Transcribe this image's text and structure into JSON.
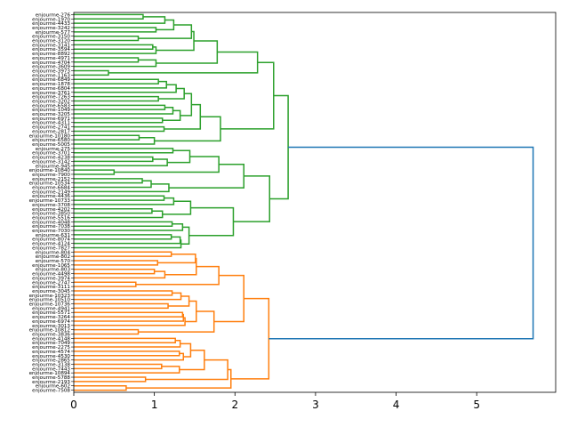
{
  "chart_data": {
    "type": "dendrogram",
    "title": "",
    "xlabel": "",
    "ylabel": "",
    "orientation": "right",
    "xlim": [
      0,
      5.98
    ],
    "xticks": [
      "0",
      "1",
      "2",
      "3",
      "4",
      "5"
    ],
    "colors": {
      "cluster_1": "#2ca02c",
      "cluster_2": "#ff7f0e",
      "root": "#1f77b4"
    },
    "leaves": [
      "enjourme-276",
      "enjourme-1970",
      "enjourme-4433",
      "enjourme-3242",
      "enjourme-577",
      "enjourme-3150",
      "enjourme-3120",
      "enjourme-3141",
      "enjourme-3594",
      "enjourme-8892",
      "enjourme-4971",
      "enjourme-4704",
      "enjourme-3609",
      "enjourme-3973",
      "enjourme-1163",
      "enjourme-6849",
      "enjourme-1878",
      "enjourme-6804",
      "enjourme-3761",
      "enjourme-7263",
      "enjourme-3202",
      "enjourme-6583",
      "enjourme-1049",
      "enjourme-3205",
      "enjourme-6971",
      "enjourme-4311",
      "enjourme-2741",
      "enjourme-2817",
      "enjourme-10180",
      "enjourme-6580",
      "enjourme-5005",
      "enjourme-275",
      "enjourme-3701",
      "enjourme-4238",
      "enjourme-3142",
      "enjourme-945",
      "enjourme-10840",
      "enjourme-7900",
      "enjourme-2152",
      "enjourme-10534",
      "enjourme-6684",
      "enjourme-2149",
      "enjourme-4436",
      "enjourme-10733",
      "enjourme-3708",
      "enjourme-4202",
      "enjourme-3850",
      "enjourme-5516",
      "enjourme-4048",
      "enjourme-7038",
      "enjourme-7030",
      "enjourme-631",
      "enjourme-8074",
      "enjourme-4124",
      "enjourme-7827",
      "enjourme-804",
      "enjourme-802",
      "enjourme-570",
      "enjourme-1065",
      "enjourme-803",
      "enjourme-4498",
      "enjourme-3974",
      "enjourme-2747",
      "enjourme-3111",
      "enjourme-3045",
      "enjourme-10323",
      "enjourme-10510",
      "enjourme-10736",
      "enjourme-4941",
      "enjourme-5571",
      "enjourme-3264",
      "enjourme-6974",
      "enjourme-3013",
      "enjourme-10812",
      "enjourme-3836",
      "enjourme-4148",
      "enjourme-7049",
      "enjourme-2275",
      "enjourme-4574",
      "enjourme-4530",
      "enjourme-2865",
      "enjourme-3138",
      "enjourme-7443",
      "enjourme-10894",
      "enjourme-5788",
      "enjourme-2193",
      "enjourme-602",
      "enjourme-7508"
    ],
    "tree": [
      [
        [
          [
            [
              [
                [
                  [
                    [
                      [
                        0,
                        0,
                        0.86
                      ],
                      0,
                      1.13
                    ],
                    [
                      0,
                      0,
                      1.02
                    ],
                    1.24
                  ],
                  [
                    0,
                    0,
                    0.8
                  ],
                  1.46
                ],
                [
                  [
                    0,
                    0,
                    0.98
                  ],
                  0,
                  1.02
                ],
                1.49
              ],
              [
                [
                  0,
                  0,
                  0.8
                ],
                0,
                1.02
              ],
              1.78
            ],
            [
              0,
              0,
              0.43
            ],
            2.28
          ],
          [
            [
              [
                [
                  [
                    [
                      [
                        0,
                        0,
                        1.05
                      ],
                      0,
                      1.15
                    ],
                    0,
                    1.27
                  ],
                  [
                    0,
                    0,
                    1.05
                  ],
                  1.37
                ],
                [
                  [
                    [
                      0,
                      0,
                      1.13
                    ],
                    0,
                    1.23
                  ],
                  [
                    0,
                    0,
                    1.1
                  ],
                  1.32
                ],
                1.46
              ],
              [
                0,
                0,
                1.12
              ],
              1.57
            ],
            [
              [
                0,
                0,
                0.81
              ],
              0,
              1.0
            ],
            1.82
          ],
          2.48
        ],
        [
          [
            [
              [
                [
                  0,
                  0,
                  1.23
                ],
                [
                  [
                    0,
                    0,
                    0.98
                  ],
                  0,
                  1.16
                ],
                1.44
              ],
              [
                0,
                0,
                0.5
              ],
              1.8
            ],
            [
              [
                [
                  0,
                  0,
                  0.85
                ],
                0,
                0.96
              ],
              0,
              1.18
            ],
            2.11
          ],
          [
            [
              [
                [
                  0,
                  0,
                  1.12
                ],
                0,
                1.24
              ],
              [
                [
                  0,
                  0,
                  0.97
                ],
                0,
                1.1
              ],
              1.45
            ],
            [
              [
                [
                  0,
                  0,
                  1.22
                ],
                0,
                1.35
              ],
              [
                [
                  [
                    0,
                    0,
                    1.21
                  ],
                  0,
                  1.32
                ],
                0,
                1.33
              ],
              1.43
            ],
            1.98
          ],
          2.43
        ],
        2.66
      ],
      [
        [
          [
            [
              [
                [
                  0,
                  0,
                  1.21
                ],
                [
                  0,
                  0,
                  1.04
                ],
                1.51
              ],
              [
                [
                  0,
                  0,
                  1.0
                ],
                0,
                1.13
              ],
              1.52
            ],
            [
              0,
              0,
              0.77
            ],
            1.8
          ],
          [
            [
              [
                [
                  [
                    0,
                    0,
                    1.22
                  ],
                  0,
                  1.33
                ],
                [
                  0,
                  0,
                  1.17
                ],
                1.43
              ],
              [
                [
                  [
                    0,
                    0,
                    1.35
                  ],
                  0,
                  1.36
                ],
                0,
                1.38
              ],
              1.52
            ],
            [
              0,
              0,
              0.8
            ],
            1.74
          ],
          2.11
        ],
        [
          [
            [
              [
                [
                  [
                    0,
                    0,
                    1.26
                  ],
                  0,
                  1.32
                ],
                [
                  [
                    0,
                    0,
                    1.31
                  ],
                  0,
                  1.36
                ],
                1.45
              ],
              [
                [
                  0,
                  0,
                  1.09
                ],
                0,
                1.31
              ],
              1.62
            ],
            [
              0,
              0,
              0.89
            ],
            1.91
          ],
          [
            0,
            0,
            0.65
          ],
          1.95
        ],
        2.42
      ],
      5.7
    ]
  }
}
